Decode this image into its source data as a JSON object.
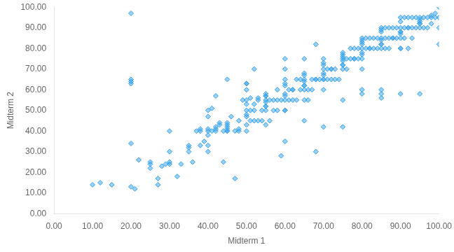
{
  "chart_data": {
    "type": "scatter",
    "xlabel": "Midterm 1",
    "ylabel": "Midterm 2",
    "marker": "diamond",
    "grid": false,
    "xlim": [
      0,
      100
    ],
    "ylim": [
      0,
      100
    ],
    "xticks": [
      {
        "value": 0,
        "label": "0.00"
      },
      {
        "value": 10,
        "label": "10.00"
      },
      {
        "value": 20,
        "label": "20.00"
      },
      {
        "value": 30,
        "label": "30.00"
      },
      {
        "value": 40,
        "label": "40.00"
      },
      {
        "value": 50,
        "label": "50.00"
      },
      {
        "value": 60,
        "label": "60.00"
      },
      {
        "value": 70,
        "label": "70.00"
      },
      {
        "value": 80,
        "label": "80.00"
      },
      {
        "value": 90,
        "label": "90.00"
      },
      {
        "value": 100,
        "label": "100.00"
      }
    ],
    "yticks": [
      {
        "value": 0,
        "label": "0.00"
      },
      {
        "value": 10,
        "label": "10.00"
      },
      {
        "value": 20,
        "label": "20.00"
      },
      {
        "value": 30,
        "label": "30.00"
      },
      {
        "value": 40,
        "label": "40.00"
      },
      {
        "value": 50,
        "label": "50.00"
      },
      {
        "value": 60,
        "label": "60.00"
      },
      {
        "value": 70,
        "label": "70.00"
      },
      {
        "value": 80,
        "label": "80.00"
      },
      {
        "value": 90,
        "label": "90.00"
      },
      {
        "value": 100,
        "label": "100.00"
      }
    ],
    "x": [
      10,
      12,
      20,
      20,
      21,
      22,
      25,
      25,
      27,
      27,
      28,
      29,
      30,
      30,
      32,
      33,
      35,
      36,
      37,
      38,
      38,
      39,
      40,
      40,
      40,
      41,
      41,
      42,
      42,
      42,
      43,
      44,
      44,
      45,
      45,
      45,
      46,
      47,
      47,
      48,
      48,
      49,
      50,
      50,
      50,
      50,
      51,
      51,
      51,
      52,
      52,
      52,
      53,
      53,
      53,
      54,
      54,
      55,
      55,
      55,
      56,
      56,
      57,
      57,
      58,
      58,
      59,
      59,
      60,
      60,
      60,
      60,
      61,
      61,
      62,
      62,
      63,
      63,
      64,
      64,
      65,
      65,
      65,
      65,
      66,
      66,
      67,
      67,
      68,
      68,
      68,
      69,
      70,
      70,
      70,
      71,
      71,
      72,
      72,
      73,
      73,
      74,
      75,
      75,
      75,
      75,
      76,
      76,
      77,
      77,
      78,
      78,
      79,
      79,
      80,
      80,
      80,
      80,
      81,
      81,
      82,
      82,
      83,
      83,
      84,
      84,
      85,
      85,
      85,
      85,
      86,
      86,
      86,
      87,
      87,
      87,
      88,
      88,
      89,
      89,
      90,
      90,
      90,
      90,
      91,
      91,
      91,
      92,
      92,
      92,
      93,
      93,
      93,
      94,
      94,
      95,
      95,
      95,
      96,
      96,
      97,
      97,
      98,
      98,
      99,
      99,
      100,
      100,
      20,
      20,
      20,
      20,
      30,
      35,
      38,
      40,
      42,
      43,
      45,
      48,
      50,
      52,
      55,
      58,
      60,
      62,
      65,
      68,
      70,
      72,
      75,
      78,
      80,
      82,
      85,
      88,
      90,
      92,
      95,
      98,
      15,
      25,
      35,
      45,
      55,
      65,
      75,
      85,
      95,
      100,
      40,
      50,
      60,
      70,
      80,
      90,
      100,
      30,
      40,
      50,
      60,
      70,
      80,
      90,
      55,
      60,
      65,
      70,
      75,
      80,
      85,
      90,
      50,
      55,
      60,
      65,
      70,
      75,
      80,
      85,
      40,
      45,
      50,
      55,
      60,
      65,
      70,
      75,
      80,
      85,
      90,
      95,
      45,
      50,
      55,
      60,
      65,
      70,
      75,
      80,
      85,
      85,
      90,
      95
    ],
    "values": [
      14,
      15,
      34,
      13,
      12,
      26,
      24,
      25,
      17,
      14,
      23,
      24,
      25,
      24,
      18,
      24,
      30,
      25,
      40,
      40,
      41,
      35,
      40,
      41,
      47,
      40,
      51,
      40,
      41,
      57,
      44,
      40,
      25,
      40,
      41,
      65,
      47,
      40,
      17,
      40,
      41,
      55,
      50,
      55,
      63,
      63,
      45,
      50,
      56,
      45,
      50,
      70,
      45,
      55,
      56,
      45,
      50,
      50,
      55,
      57,
      45,
      55,
      50,
      55,
      50,
      60,
      28,
      55,
      50,
      55,
      65,
      75,
      55,
      60,
      55,
      60,
      55,
      65,
      60,
      65,
      55,
      60,
      65,
      75,
      55,
      60,
      60,
      65,
      65,
      30,
      82,
      65,
      65,
      70,
      65,
      70,
      65,
      65,
      70,
      70,
      65,
      65,
      70,
      75,
      76,
      55,
      70,
      75,
      75,
      80,
      75,
      80,
      75,
      80,
      75,
      80,
      85,
      60,
      80,
      85,
      80,
      85,
      80,
      85,
      80,
      85,
      80,
      85,
      90,
      60,
      80,
      85,
      90,
      80,
      85,
      90,
      85,
      90,
      85,
      90,
      85,
      90,
      95,
      80,
      85,
      90,
      95,
      90,
      95,
      80,
      85,
      90,
      95,
      90,
      95,
      90,
      95,
      92,
      90,
      95,
      90,
      95,
      92,
      95,
      95,
      97,
      100,
      82,
      97,
      65,
      64,
      63,
      30,
      33,
      33,
      33,
      42,
      43,
      43,
      45,
      48,
      53,
      52,
      55,
      58,
      60,
      62,
      65,
      68,
      70,
      72,
      75,
      78,
      80,
      82,
      85,
      88,
      90,
      93,
      96,
      14,
      22,
      32,
      42,
      52,
      62,
      72,
      82,
      92,
      95,
      30,
      40,
      50,
      60,
      70,
      80,
      90,
      40,
      50,
      60,
      70,
      75,
      82,
      88,
      58,
      62,
      67,
      72,
      77,
      83,
      88,
      93,
      53,
      57,
      63,
      68,
      73,
      78,
      84,
      89,
      38,
      44,
      47,
      54,
      57,
      64,
      67,
      74,
      77,
      84,
      87,
      94,
      40,
      43,
      43,
      35,
      45,
      42,
      42,
      58,
      58,
      56,
      58,
      58
    ]
  }
}
